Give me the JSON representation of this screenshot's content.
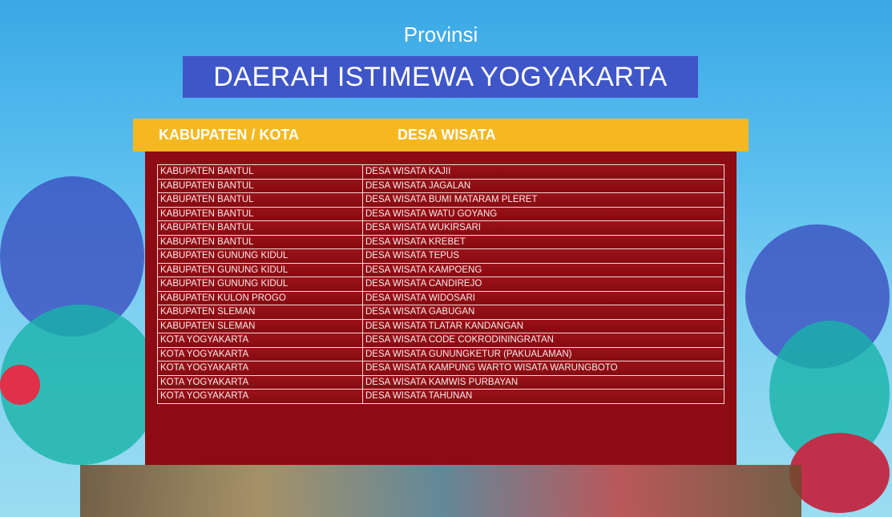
{
  "subtitle": "Provinsi",
  "title": "DAERAH ISTIMEWA YOGYAKARTA",
  "colors": {
    "title_bg": "#3f56c8",
    "header_bg": "#f5b820",
    "table_bg": "#8d0b12"
  },
  "table": {
    "headers": [
      "KABUPATEN / KOTA",
      "DESA WISATA"
    ],
    "rows": [
      [
        "KABUPATEN BANTUL",
        "DESA WISATA KAJII"
      ],
      [
        "KABUPATEN BANTUL",
        "DESA WISATA JAGALAN"
      ],
      [
        "KABUPATEN BANTUL",
        "DESA WISATA BUMI MATARAM PLERET"
      ],
      [
        "KABUPATEN BANTUL",
        "DESA WISATA WATU GOYANG"
      ],
      [
        "KABUPATEN BANTUL",
        "DESA WISATA WUKIRSARI"
      ],
      [
        "KABUPATEN BANTUL",
        "DESA WISATA KREBET"
      ],
      [
        "KABUPATEN GUNUNG KIDUL",
        "DESA WISATA TEPUS"
      ],
      [
        "KABUPATEN GUNUNG KIDUL",
        "DESA WISATA KAMPOENG"
      ],
      [
        "KABUPATEN GUNUNG KIDUL",
        "DESA WISATA CANDIREJO"
      ],
      [
        "KABUPATEN KULON PROGO",
        "DESA WISATA WIDOSARI"
      ],
      [
        "KABUPATEN SLEMAN",
        "DESA WISATA GABUGAN"
      ],
      [
        "KABUPATEN SLEMAN",
        "DESA WISATA TLATAR KANDANGAN"
      ],
      [
        "KOTA YOGYAKARTA",
        "DESA WISATA CODE COKRODININGRATAN"
      ],
      [
        "KOTA YOGYAKARTA",
        "DESA WISATA GUNUNGKETUR (PAKUALAMAN)"
      ],
      [
        "KOTA YOGYAKARTA",
        "DESA WISATA KAMPUNG WARTO WISATA WARUNGBOTO"
      ],
      [
        "KOTA YOGYAKARTA",
        "DESA WISATA KAMWIS PURBAYAN"
      ],
      [
        "KOTA YOGYAKARTA",
        "DESA WISATA TAHUNAN"
      ]
    ]
  }
}
